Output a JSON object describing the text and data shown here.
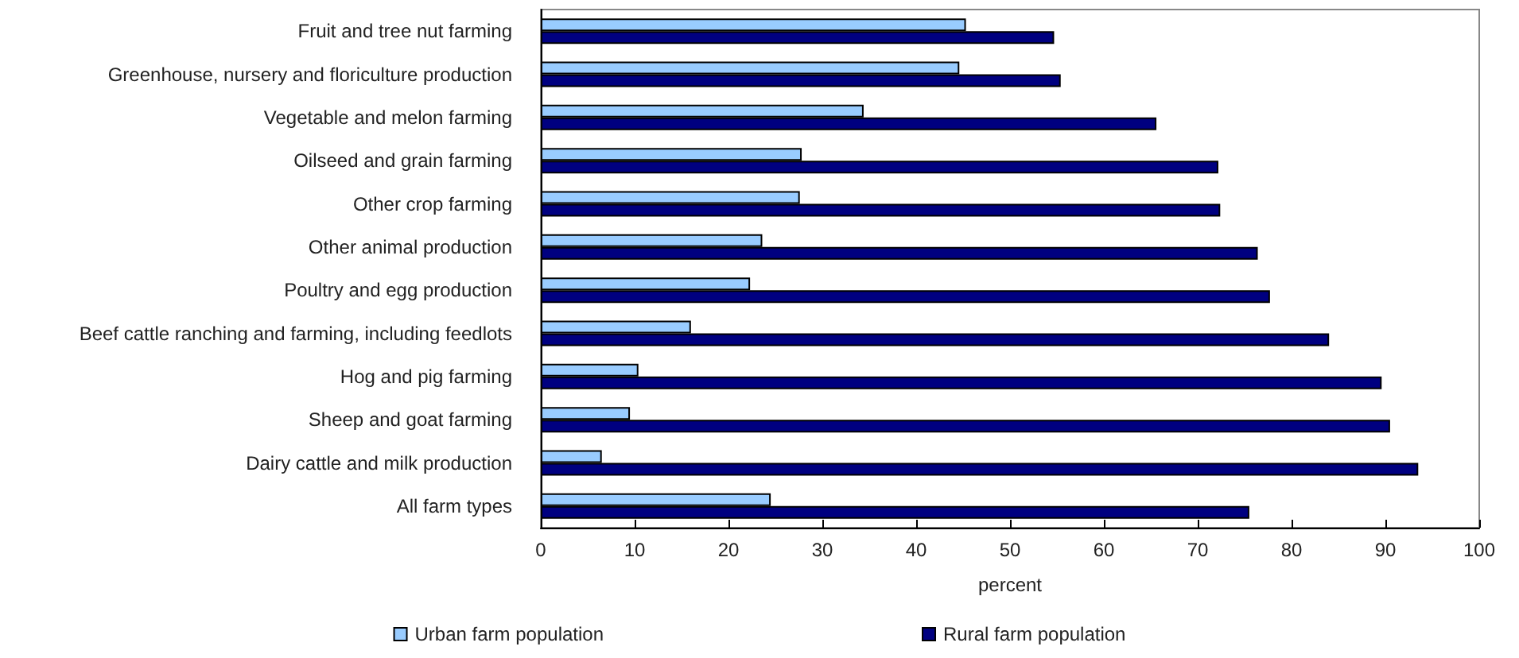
{
  "chart_data": {
    "type": "bar",
    "orientation": "horizontal",
    "xlabel": "percent",
    "categories": [
      "Fruit and tree nut farming",
      "Greenhouse, nursery and floriculture production",
      "Vegetable and melon farming",
      "Oilseed and grain farming",
      "Other crop farming",
      "Other animal production",
      "Poultry and egg production",
      "Beef cattle ranching and farming, including feedlots",
      "Hog and pig farming",
      "Sheep and goat farming",
      "Dairy cattle and milk production",
      "All farm types"
    ],
    "series": [
      {
        "name": "Urban farm population",
        "color": "#99ccff",
        "values": [
          45.3,
          44.6,
          34.4,
          27.8,
          27.6,
          23.6,
          22.3,
          16.0,
          10.4,
          9.5,
          6.5,
          24.5
        ]
      },
      {
        "name": "Rural farm population",
        "color": "#000080",
        "values": [
          54.7,
          55.4,
          65.6,
          72.2,
          72.4,
          76.4,
          77.7,
          84.0,
          89.6,
          90.5,
          93.5,
          75.5
        ]
      }
    ],
    "xlim": [
      0,
      100
    ],
    "xticks": [
      0,
      10,
      20,
      30,
      40,
      50,
      60,
      70,
      80,
      90,
      100
    ],
    "grid": false,
    "legend": "bottom"
  }
}
